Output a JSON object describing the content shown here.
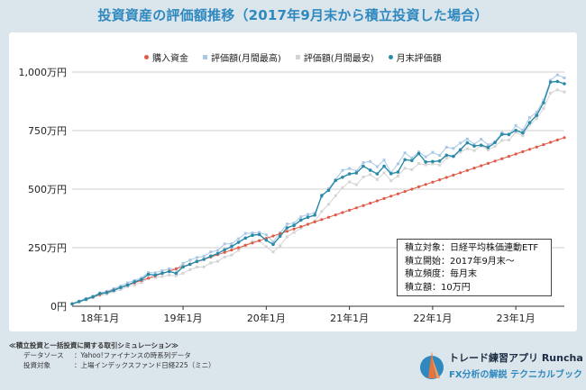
{
  "header": {
    "title": "投資資産の評価額推移（2017年9月末から積立投資した場合）"
  },
  "chart_data": {
    "type": "line",
    "x": [
      "2017-09",
      "2017-10",
      "2017-11",
      "2017-12",
      "2018-01",
      "2018-02",
      "2018-03",
      "2018-04",
      "2018-05",
      "2018-06",
      "2018-07",
      "2018-08",
      "2018-09",
      "2018-10",
      "2018-11",
      "2018-12",
      "2019-01",
      "2019-02",
      "2019-03",
      "2019-04",
      "2019-05",
      "2019-06",
      "2019-07",
      "2019-08",
      "2019-09",
      "2019-10",
      "2019-11",
      "2019-12",
      "2020-01",
      "2020-02",
      "2020-03",
      "2020-04",
      "2020-05",
      "2020-06",
      "2020-07",
      "2020-08",
      "2020-09",
      "2020-10",
      "2020-11",
      "2020-12",
      "2021-01",
      "2021-02",
      "2021-03",
      "2021-04",
      "2021-05",
      "2021-06",
      "2021-07",
      "2021-08",
      "2021-09",
      "2021-10",
      "2021-11",
      "2021-12",
      "2022-01",
      "2022-02",
      "2022-03",
      "2022-04",
      "2022-05",
      "2022-06",
      "2022-07",
      "2022-08",
      "2022-09",
      "2022-10",
      "2022-11",
      "2022-12",
      "2023-01",
      "2023-02",
      "2023-03",
      "2023-04",
      "2023-05",
      "2023-06",
      "2023-07",
      "2023-08"
    ],
    "x_tick_labels": [
      "18年1月",
      "19年1月",
      "20年1月",
      "21年1月",
      "22年1月",
      "23年1月"
    ],
    "y_tick_labels": [
      "0円",
      "250万円",
      "500万円",
      "750万円",
      "1,000万円"
    ],
    "ylim": [
      0,
      1000
    ],
    "y_unit": "万円",
    "series": [
      {
        "name": "購入資金",
        "color": "#e05a47",
        "marker": "dot",
        "values": [
          10,
          20,
          30,
          40,
          50,
          60,
          70,
          80,
          90,
          100,
          110,
          120,
          130,
          140,
          150,
          160,
          170,
          180,
          190,
          200,
          210,
          220,
          230,
          240,
          250,
          260,
          270,
          280,
          290,
          300,
          310,
          320,
          330,
          340,
          350,
          360,
          370,
          380,
          390,
          400,
          410,
          420,
          430,
          440,
          450,
          460,
          470,
          480,
          490,
          500,
          510,
          520,
          530,
          540,
          550,
          560,
          570,
          580,
          590,
          600,
          610,
          620,
          630,
          640,
          650,
          660,
          670,
          680,
          690,
          700,
          710,
          720
        ]
      },
      {
        "name": "評価額(月間最高)",
        "color": "#a9c8e6",
        "marker": "square",
        "values": [
          11,
          22,
          33,
          43,
          57,
          64,
          75,
          86,
          100,
          110,
          121,
          144,
          143,
          152,
          160,
          157,
          183,
          197,
          208,
          213,
          232,
          238,
          266,
          267,
          288,
          311,
          313,
          315,
          305,
          275,
          313,
          351,
          355,
          382,
          392,
          398,
          467,
          502,
          541,
          580,
          588,
          578,
          613,
          618,
          596,
          624,
          571,
          608,
          655,
          633,
          659,
          638,
          657,
          644,
          679,
          674,
          697,
          714,
          692,
          713,
          689,
          703,
          741,
          731,
          771,
          752,
          805,
          829,
          880,
          965,
          988,
          975
        ]
      },
      {
        "name": "評価額(月間最安)",
        "color": "#d4d4d4",
        "marker": "square",
        "values": [
          9,
          18,
          27,
          37,
          46,
          52,
          62,
          71,
          84,
          91,
          101,
          119,
          122,
          127,
          133,
          130,
          141,
          156,
          167,
          168,
          185,
          192,
          210,
          219,
          239,
          262,
          276,
          280,
          254,
          232,
          258,
          296,
          315,
          334,
          350,
          364,
          405,
          435,
          472,
          506,
          531,
          519,
          552,
          562,
          541,
          570,
          536,
          556,
          589,
          583,
          609,
          604,
          608,
          603,
          632,
          640,
          658,
          673,
          665,
          685,
          667,
          683,
          708,
          710,
          743,
          728,
          774,
          801,
          844,
          910,
          924,
          915
        ]
      },
      {
        "name": "月末評価額",
        "color": "#2a8aa8",
        "marker": "dot",
        "values": [
          10,
          20,
          30,
          40,
          54,
          58,
          68,
          80,
          90,
          104,
          114,
          136,
          133,
          141,
          148,
          141,
          168,
          179,
          192,
          200,
          214,
          225,
          241,
          255,
          273,
          291,
          303,
          306,
          282,
          264,
          299,
          335,
          345,
          368,
          380,
          389,
          473,
          495,
          537,
          551,
          565,
          569,
          598,
          581,
          565,
          598,
          566,
          573,
          626,
          622,
          652,
          616,
          618,
          620,
          645,
          640,
          668,
          698,
          684,
          688,
          678,
          699,
          734,
          734,
          751,
          740,
          784,
          815,
          869,
          957,
          960,
          950
        ]
      }
    ],
    "legend_position": "top",
    "grid": {
      "horizontal": true,
      "vertical": false
    }
  },
  "info_box": {
    "lines": [
      "積立対象：日経平均株価連動ETF",
      "積立開始：2017年9月末〜",
      "積立頻度：毎月末",
      "積立額：10万円"
    ]
  },
  "footer": {
    "heading": "≪積立投資と一括投資に関する取引シミュレーション≫",
    "rows": [
      {
        "key": "データソース",
        "value": "：Yahoo!ファイナンスの時系列データ"
      },
      {
        "key": "投資対象",
        "value": "：上場インデックスファンド日経225（ミニ）"
      }
    ]
  },
  "brand": {
    "line1": "トレード練習アプリ Runcha",
    "line2": "FX分析の解説 テクニカルブック",
    "colors": {
      "accent": "#2f89bf",
      "logo_orange": "#e8743b"
    }
  }
}
